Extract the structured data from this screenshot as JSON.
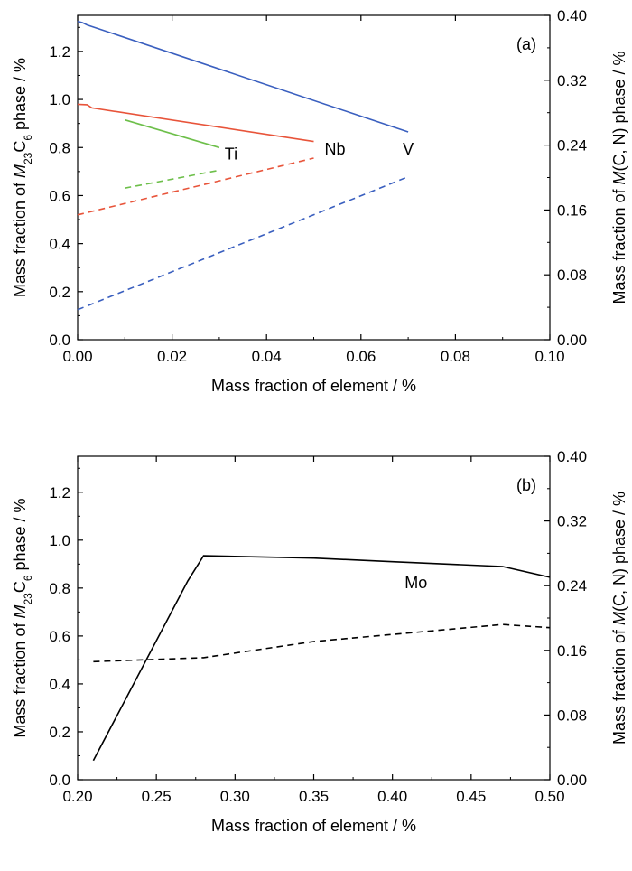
{
  "chart_data": [
    {
      "panel_label": "(a)",
      "type": "line",
      "xlabel": "Mass fraction of element / %",
      "ylabel_left": [
        "Mass fraction of ",
        "M",
        "23",
        "C",
        "6",
        " phase / %"
      ],
      "ylabel_right": [
        "Mass fraction of ",
        "M",
        "(C, N) phase / %"
      ],
      "xlim": [
        0.0,
        0.1
      ],
      "ylim_left": [
        0.0,
        1.35
      ],
      "ylim_right": [
        0.0,
        0.4
      ],
      "xticks": [
        "0.00",
        "0.02",
        "0.04",
        "0.06",
        "0.08",
        "0.10"
      ],
      "yticks_left": [
        "0.0",
        "0.2",
        "0.4",
        "0.6",
        "0.8",
        "1.0",
        "1.2"
      ],
      "yticks_right": [
        "0.00",
        "0.08",
        "0.16",
        "0.24",
        "0.32",
        "0.40"
      ],
      "series": [
        {
          "name": "V",
          "axis": "left",
          "style": "solid",
          "color": "#3a5fbf",
          "x": [
            0.0,
            0.001,
            0.002,
            0.07
          ],
          "y": [
            1.325,
            1.32,
            1.31,
            0.865
          ]
        },
        {
          "name": "V",
          "axis": "right",
          "style": "dashed",
          "color": "#3a5fbf",
          "x": [
            0.0,
            0.07
          ],
          "y": [
            0.037,
            0.201
          ]
        },
        {
          "name": "Nb",
          "axis": "left",
          "style": "solid",
          "color": "#e8543a",
          "x": [
            0.0,
            0.002,
            0.003,
            0.05
          ],
          "y": [
            0.98,
            0.978,
            0.965,
            0.825
          ]
        },
        {
          "name": "Nb",
          "axis": "right",
          "style": "dashed",
          "color": "#e8543a",
          "x": [
            0.0,
            0.05
          ],
          "y": [
            0.154,
            0.224
          ]
        },
        {
          "name": "Ti",
          "axis": "left",
          "style": "solid",
          "color": "#6dbf4a",
          "x": [
            0.01,
            0.03
          ],
          "y": [
            0.915,
            0.8
          ]
        },
        {
          "name": "Ti",
          "axis": "right",
          "style": "dashed",
          "color": "#6dbf4a",
          "x": [
            0.01,
            0.03
          ],
          "y": [
            0.187,
            0.209
          ]
        }
      ],
      "annotations": [
        {
          "text": "Ti",
          "x": 0.0325,
          "y": 0.75
        },
        {
          "text": "Nb",
          "x": 0.0545,
          "y": 0.77
        },
        {
          "text": "V",
          "x": 0.07,
          "y": 0.77
        }
      ]
    },
    {
      "panel_label": "(b)",
      "type": "line",
      "xlabel": "Mass fraction of element / %",
      "ylabel_left": [
        "Mass fraction of ",
        "M",
        "23",
        "C",
        "6",
        " phase / %"
      ],
      "ylabel_right": [
        "Mass fraction of ",
        "M",
        "(C, N) phase / %"
      ],
      "xlim": [
        0.2,
        0.5
      ],
      "ylim_left": [
        0.0,
        1.35
      ],
      "ylim_right": [
        0.0,
        0.4
      ],
      "xticks": [
        "0.20",
        "0.25",
        "0.30",
        "0.35",
        "0.40",
        "0.45",
        "0.50"
      ],
      "yticks_left": [
        "0.0",
        "0.2",
        "0.4",
        "0.6",
        "0.8",
        "1.0",
        "1.2"
      ],
      "yticks_right": [
        "0.00",
        "0.08",
        "0.16",
        "0.24",
        "0.32",
        "0.40"
      ],
      "series": [
        {
          "name": "Mo",
          "axis": "left",
          "style": "solid",
          "color": "#000000",
          "x": [
            0.21,
            0.27,
            0.28,
            0.35,
            0.4,
            0.47,
            0.5
          ],
          "y": [
            0.08,
            0.83,
            0.935,
            0.925,
            0.91,
            0.89,
            0.845
          ]
        },
        {
          "name": "Mo",
          "axis": "right",
          "style": "dashed",
          "color": "#000000",
          "x": [
            0.21,
            0.28,
            0.35,
            0.47,
            0.5
          ],
          "y": [
            0.146,
            0.151,
            0.171,
            0.192,
            0.188
          ]
        }
      ],
      "annotations": [
        {
          "text": "Mo",
          "x": 0.415,
          "y": 0.8
        }
      ]
    }
  ]
}
